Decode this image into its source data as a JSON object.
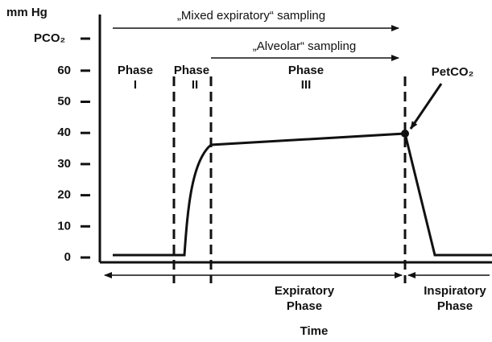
{
  "y_axis": {
    "unit": "mm Hg",
    "label": "PCO₂",
    "ticks": [
      0,
      10,
      20,
      30,
      40,
      50,
      60
    ]
  },
  "sampling": [
    "„Mixed expiratory“ sampling",
    "„Alveolar“ sampling"
  ],
  "phases": [
    {
      "name": "Phase",
      "numeral": "I"
    },
    {
      "name": "Phase",
      "numeral": "II"
    },
    {
      "name": "Phase",
      "numeral": "III"
    }
  ],
  "marker": "PetCO₂",
  "intervals": [
    {
      "line1": "Expiratory",
      "line2": "Phase"
    },
    {
      "line1": "Inspiratory",
      "line2": "Phase"
    }
  ],
  "x_axis": {
    "label": "Time"
  }
}
